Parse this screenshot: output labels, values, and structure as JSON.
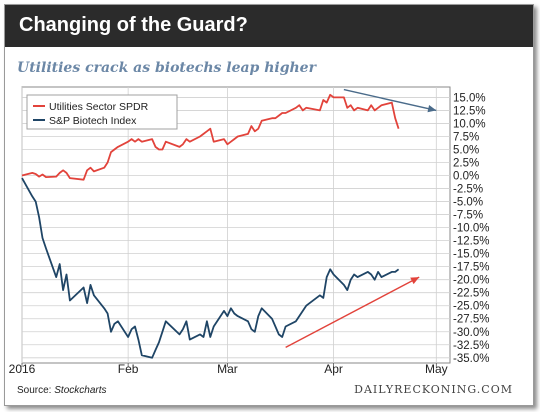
{
  "header": {
    "title": "Changing of the Guard?"
  },
  "chart_data": {
    "type": "line",
    "title": "Utilities crack as biotechs leap higher",
    "y_tick_labels": [
      "15.0%",
      "12.5%",
      "10.0%",
      "7.5%",
      "5.0%",
      "2.5%",
      "0.0%",
      "-2.5%",
      "-5.0%",
      "-7.5%",
      "-10.0%",
      "-12.5%",
      "-15.0%",
      "-17.5%",
      "-20.0%",
      "-22.5%",
      "-25.0%",
      "-27.5%",
      "-30.0%",
      "-32.5%",
      "-35.0%"
    ],
    "y_tick_values": [
      15,
      12.5,
      10,
      7.5,
      5,
      2.5,
      0,
      -2.5,
      -5,
      -7.5,
      -10,
      -12.5,
      -15,
      -17.5,
      -20,
      -22.5,
      -25,
      -27.5,
      -30,
      -32.5,
      -35
    ],
    "ylim": [
      -36,
      17
    ],
    "x_tick_labels": [
      "2016",
      "Feb",
      "Mar",
      "Apr",
      "May"
    ],
    "x_tick_dates": [
      "2016-01-01",
      "2016-02-01",
      "2016-03-01",
      "2016-04-01",
      "2016-05-01"
    ],
    "xlim": [
      "2016-01-01",
      "2016-05-05"
    ],
    "legend_position": "top-left",
    "grid": true,
    "series": [
      {
        "name": "Utilities Sector SPDR",
        "color": "#e2433b",
        "points": [
          [
            "2016-01-01",
            0.0
          ],
          [
            "2016-01-04",
            0.5
          ],
          [
            "2016-01-05",
            0.3
          ],
          [
            "2016-01-06",
            -0.2
          ],
          [
            "2016-01-07",
            0.2
          ],
          [
            "2016-01-08",
            -0.3
          ],
          [
            "2016-01-11",
            -0.2
          ],
          [
            "2016-01-12",
            0.5
          ],
          [
            "2016-01-13",
            1.0
          ],
          [
            "2016-01-14",
            0.5
          ],
          [
            "2016-01-15",
            -0.5
          ],
          [
            "2016-01-19",
            -0.8
          ],
          [
            "2016-01-20",
            1.0
          ],
          [
            "2016-01-21",
            1.5
          ],
          [
            "2016-01-22",
            0.8
          ],
          [
            "2016-01-25",
            1.5
          ],
          [
            "2016-01-26",
            2.5
          ],
          [
            "2016-01-27",
            4.5
          ],
          [
            "2016-01-28",
            5.0
          ],
          [
            "2016-01-29",
            5.5
          ],
          [
            "2016-02-01",
            6.5
          ],
          [
            "2016-02-02",
            7.0
          ],
          [
            "2016-02-03",
            6.5
          ],
          [
            "2016-02-04",
            7.0
          ],
          [
            "2016-02-05",
            6.5
          ],
          [
            "2016-02-08",
            7.0
          ],
          [
            "2016-02-09",
            5.5
          ],
          [
            "2016-02-10",
            5.0
          ],
          [
            "2016-02-11",
            5.0
          ],
          [
            "2016-02-12",
            6.5
          ],
          [
            "2016-02-16",
            5.5
          ],
          [
            "2016-02-17",
            6.0
          ],
          [
            "2016-02-18",
            7.0
          ],
          [
            "2016-02-19",
            6.5
          ],
          [
            "2016-02-22",
            7.5
          ],
          [
            "2016-02-23",
            8.0
          ],
          [
            "2016-02-24",
            8.5
          ],
          [
            "2016-02-25",
            9.0
          ],
          [
            "2016-02-26",
            6.5
          ],
          [
            "2016-02-29",
            7.0
          ],
          [
            "2016-03-01",
            6.0
          ],
          [
            "2016-03-02",
            6.5
          ],
          [
            "2016-03-03",
            7.0
          ],
          [
            "2016-03-04",
            7.5
          ],
          [
            "2016-03-07",
            8.0
          ],
          [
            "2016-03-08",
            9.5
          ],
          [
            "2016-03-09",
            8.5
          ],
          [
            "2016-03-10",
            9.0
          ],
          [
            "2016-03-11",
            10.5
          ],
          [
            "2016-03-14",
            11.0
          ],
          [
            "2016-03-15",
            11.0
          ],
          [
            "2016-03-16",
            11.5
          ],
          [
            "2016-03-17",
            12.0
          ],
          [
            "2016-03-18",
            12.0
          ],
          [
            "2016-03-21",
            13.0
          ],
          [
            "2016-03-22",
            13.5
          ],
          [
            "2016-03-23",
            12.5
          ],
          [
            "2016-03-24",
            13.0
          ],
          [
            "2016-03-28",
            12.5
          ],
          [
            "2016-03-29",
            14.5
          ],
          [
            "2016-03-30",
            14.0
          ],
          [
            "2016-03-31",
            15.5
          ],
          [
            "2016-04-01",
            15.0
          ],
          [
            "2016-04-04",
            15.0
          ],
          [
            "2016-04-05",
            13.0
          ],
          [
            "2016-04-06",
            13.5
          ],
          [
            "2016-04-07",
            12.5
          ],
          [
            "2016-04-08",
            13.0
          ],
          [
            "2016-04-11",
            12.5
          ],
          [
            "2016-04-12",
            13.5
          ],
          [
            "2016-04-13",
            12.5
          ],
          [
            "2016-04-14",
            13.0
          ],
          [
            "2016-04-15",
            13.5
          ],
          [
            "2016-04-18",
            14.0
          ],
          [
            "2016-04-19",
            11.0
          ],
          [
            "2016-04-20",
            9.0
          ]
        ]
      },
      {
        "name": "S&P Biotech Index",
        "color": "#1f4566",
        "points": [
          [
            "2016-01-01",
            -0.5
          ],
          [
            "2016-01-04",
            -4.0
          ],
          [
            "2016-01-05",
            -5.0
          ],
          [
            "2016-01-06",
            -8.0
          ],
          [
            "2016-01-07",
            -12.0
          ],
          [
            "2016-01-08",
            -14.0
          ],
          [
            "2016-01-11",
            -19.5
          ],
          [
            "2016-01-12",
            -17.0
          ],
          [
            "2016-01-13",
            -22.0
          ],
          [
            "2016-01-14",
            -19.0
          ],
          [
            "2016-01-15",
            -24.0
          ],
          [
            "2016-01-19",
            -21.5
          ],
          [
            "2016-01-20",
            -24.5
          ],
          [
            "2016-01-21",
            -21.0
          ],
          [
            "2016-01-22",
            -23.0
          ],
          [
            "2016-01-25",
            -25.5
          ],
          [
            "2016-01-26",
            -26.5
          ],
          [
            "2016-01-27",
            -30.0
          ],
          [
            "2016-01-28",
            -28.5
          ],
          [
            "2016-01-29",
            -28.0
          ],
          [
            "2016-02-01",
            -31.0
          ],
          [
            "2016-02-02",
            -29.5
          ],
          [
            "2016-02-03",
            -29.0
          ],
          [
            "2016-02-04",
            -31.5
          ],
          [
            "2016-02-05",
            -34.5
          ],
          [
            "2016-02-08",
            -35.0
          ],
          [
            "2016-02-09",
            -33.5
          ],
          [
            "2016-02-10",
            -32.0
          ],
          [
            "2016-02-11",
            -30.0
          ],
          [
            "2016-02-12",
            -28.0
          ],
          [
            "2016-02-16",
            -30.5
          ],
          [
            "2016-02-17",
            -29.5
          ],
          [
            "2016-02-18",
            -28.0
          ],
          [
            "2016-02-19",
            -31.5
          ],
          [
            "2016-02-22",
            -30.5
          ],
          [
            "2016-02-23",
            -31.0
          ],
          [
            "2016-02-24",
            -28.0
          ],
          [
            "2016-02-25",
            -31.0
          ],
          [
            "2016-02-26",
            -29.0
          ],
          [
            "2016-02-29",
            -26.0
          ],
          [
            "2016-03-01",
            -27.0
          ],
          [
            "2016-03-02",
            -25.5
          ],
          [
            "2016-03-03",
            -26.5
          ],
          [
            "2016-03-04",
            -27.0
          ],
          [
            "2016-03-07",
            -28.0
          ],
          [
            "2016-03-08",
            -29.5
          ],
          [
            "2016-03-09",
            -30.0
          ],
          [
            "2016-03-10",
            -27.0
          ],
          [
            "2016-03-11",
            -25.5
          ],
          [
            "2016-03-14",
            -27.5
          ],
          [
            "2016-03-15",
            -29.0
          ],
          [
            "2016-03-16",
            -30.5
          ],
          [
            "2016-03-17",
            -31.0
          ],
          [
            "2016-03-18",
            -29.0
          ],
          [
            "2016-03-21",
            -28.0
          ],
          [
            "2016-03-22",
            -27.0
          ],
          [
            "2016-03-23",
            -26.0
          ],
          [
            "2016-03-24",
            -25.0
          ],
          [
            "2016-03-28",
            -23.0
          ],
          [
            "2016-03-29",
            -23.5
          ],
          [
            "2016-03-30",
            -19.5
          ],
          [
            "2016-03-31",
            -18.0
          ],
          [
            "2016-04-01",
            -19.0
          ],
          [
            "2016-04-04",
            -21.0
          ],
          [
            "2016-04-05",
            -22.0
          ],
          [
            "2016-04-06",
            -20.0
          ],
          [
            "2016-04-07",
            -19.0
          ],
          [
            "2016-04-08",
            -19.5
          ],
          [
            "2016-04-11",
            -18.5
          ],
          [
            "2016-04-12",
            -19.0
          ],
          [
            "2016-04-13",
            -20.0
          ],
          [
            "2016-04-14",
            -18.5
          ],
          [
            "2016-04-15",
            -19.5
          ],
          [
            "2016-04-18",
            -18.5
          ],
          [
            "2016-04-19",
            -18.5
          ],
          [
            "2016-04-20",
            -18.0
          ]
        ]
      }
    ],
    "annotations": [
      {
        "type": "trend-arrow",
        "color": "#4a6b8a",
        "from": [
          "2016-04-04",
          16.5
        ],
        "to": [
          "2016-05-01",
          12.5
        ]
      },
      {
        "type": "trend-arrow",
        "color": "#e2433b",
        "from": [
          "2016-03-18",
          -33.0
        ],
        "to": [
          "2016-04-26",
          -19.5
        ]
      }
    ]
  },
  "footer": {
    "source_label": "Source: ",
    "source_name": "Stockcharts",
    "brand": "DAILYRECKONING.COM"
  }
}
